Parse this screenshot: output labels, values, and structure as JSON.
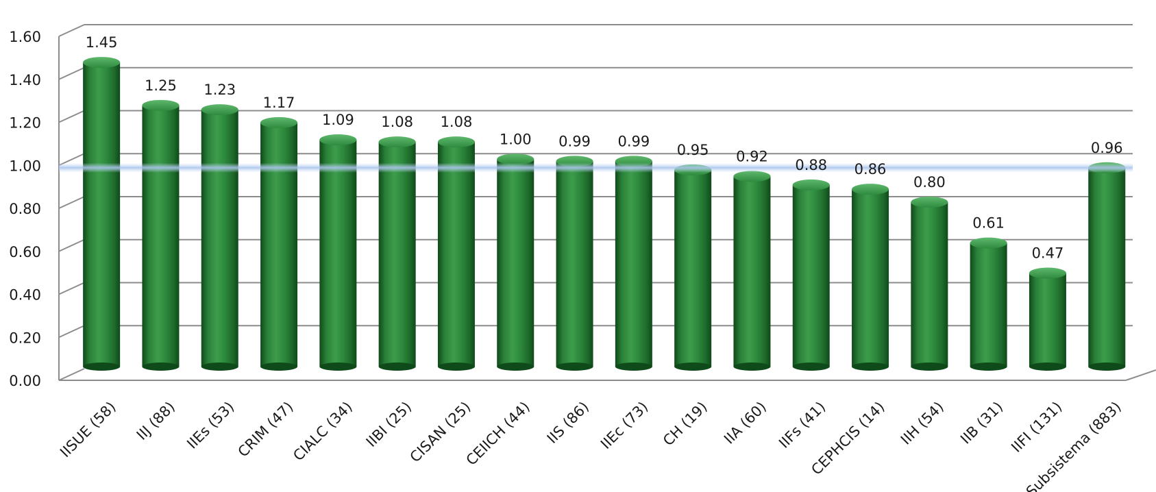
{
  "chart_data": {
    "type": "bar",
    "title": "",
    "xlabel": "",
    "ylabel": "",
    "ylim": [
      0,
      1.6
    ],
    "yticks": [
      "0.00",
      "0.20",
      "0.40",
      "0.60",
      "0.80",
      "1.00",
      "1.20",
      "1.40",
      "1.60"
    ],
    "grid": true,
    "categories": [
      "IISUE (58)",
      "IIJ (88)",
      "IIEs (53)",
      "CRIM (47)",
      "CIALC (34)",
      "IIBI (25)",
      "CISAN (25)",
      "CEIICH (44)",
      "IIS (86)",
      "IIEc (73)",
      "CH (19)",
      "IIA (60)",
      "IIFs (41)",
      "CEPHCIS (14)",
      "IIH (54)",
      "IIB (31)",
      "IIFI (131)",
      "Subsistema (883)"
    ],
    "values": [
      1.45,
      1.25,
      1.23,
      1.17,
      1.09,
      1.08,
      1.08,
      1.0,
      0.99,
      0.99,
      0.95,
      0.92,
      0.88,
      0.86,
      0.8,
      0.61,
      0.47,
      0.96
    ],
    "data_labels": [
      "1.45",
      "1.25",
      "1.23",
      "1.17",
      "1.09",
      "1.08",
      "1.08",
      "1.00",
      "0.99",
      "0.99",
      "0.95",
      "0.92",
      "0.88",
      "0.86",
      "0.80",
      "0.61",
      "0.47",
      "0.96"
    ],
    "reference_line": 0.96,
    "colors": {
      "bar": "#2e8b3e",
      "bar_dark": "#0f4a1a",
      "bar_light": "#6cc27a",
      "grid": "#8c8c8c",
      "reference": "#a9c4ec"
    }
  }
}
